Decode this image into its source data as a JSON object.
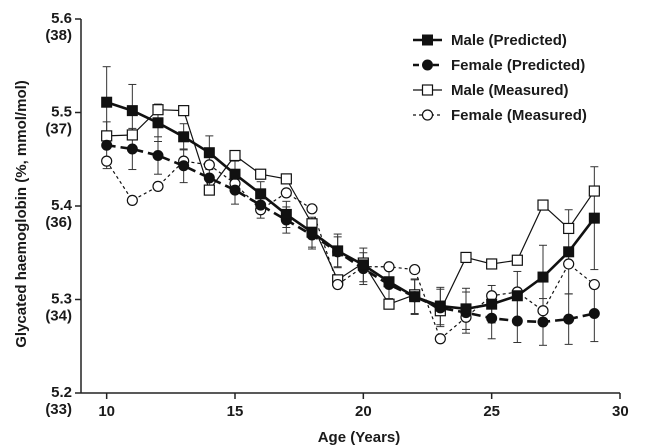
{
  "chart_data": {
    "type": "line",
    "xlabel": "Age (Years)",
    "ylabel": "Glycated haemoglobin (%, mmol/mol)",
    "xlim": [
      9,
      30
    ],
    "ylim": [
      5.2,
      5.6
    ],
    "x_ticks": [
      {
        "value": 10,
        "label": "10"
      },
      {
        "value": 15,
        "label": "15"
      },
      {
        "value": 20,
        "label": "20"
      },
      {
        "value": 25,
        "label": "25"
      },
      {
        "value": 30,
        "label": "30"
      }
    ],
    "y_ticks": [
      {
        "value": 5.2,
        "label": "5.2",
        "sublabel": "(33)"
      },
      {
        "value": 5.3,
        "label": "5.3",
        "sublabel": "(34)"
      },
      {
        "value": 5.4,
        "label": "5.4",
        "sublabel": "(36)"
      },
      {
        "value": 5.5,
        "label": "5.5",
        "sublabel": "(37)"
      },
      {
        "value": 5.6,
        "label": "5.6",
        "sublabel": "(38)"
      }
    ],
    "grid": false,
    "legend_position": "top-right",
    "x": [
      10,
      11,
      12,
      13,
      14,
      15,
      16,
      17,
      18,
      19,
      20,
      21,
      22,
      23,
      24,
      25,
      26,
      27,
      28,
      29
    ],
    "series": [
      {
        "name": "Male (Predicted)",
        "marker": "square-filled",
        "line": "solid-thick",
        "values": [
          5.511,
          5.502,
          5.489,
          5.474,
          5.457,
          5.434,
          5.413,
          5.391,
          5.372,
          5.352,
          5.337,
          5.319,
          5.303,
          5.293,
          5.29,
          5.295,
          5.304,
          5.324,
          5.351,
          5.387
        ],
        "errors": [
          0.038,
          0.028,
          0.02,
          0.014,
          0.018,
          0.014,
          0.013,
          0.014,
          0.016,
          0.018,
          0.018,
          0.018,
          0.018,
          0.02,
          0.022,
          0.02,
          0.026,
          0.034,
          0.045,
          0.055
        ]
      },
      {
        "name": "Female (Predicted)",
        "marker": "circle-filled",
        "line": "dashed-thick",
        "values": [
          5.465,
          5.461,
          5.454,
          5.443,
          5.43,
          5.417,
          5.401,
          5.385,
          5.369,
          5.351,
          5.333,
          5.316,
          5.303,
          5.291,
          5.286,
          5.28,
          5.277,
          5.276,
          5.279,
          5.285
        ],
        "errors": [
          0.025,
          0.022,
          0.02,
          0.018,
          0.016,
          0.015,
          0.014,
          0.014,
          0.015,
          0.016,
          0.017,
          0.018,
          0.019,
          0.02,
          0.022,
          0.022,
          0.023,
          0.025,
          0.027,
          0.03
        ]
      },
      {
        "name": "Male (Measured)",
        "marker": "square-open",
        "line": "solid-thin",
        "values": [
          5.475,
          5.476,
          5.503,
          5.502,
          5.417,
          5.454,
          5.434,
          5.429,
          5.381,
          5.321,
          5.339,
          5.295,
          5.305,
          5.288,
          5.345,
          5.338,
          5.342,
          5.401,
          5.376,
          5.416
        ],
        "errors": [
          0,
          0,
          0,
          0,
          0,
          0,
          0,
          0,
          0,
          0,
          0,
          0,
          0,
          0,
          0,
          0,
          0,
          0,
          0,
          0
        ]
      },
      {
        "name": "Female (Measured)",
        "marker": "circle-open",
        "line": "dotted-thin",
        "values": [
          5.448,
          5.406,
          5.421,
          5.448,
          5.444,
          5.424,
          5.396,
          5.414,
          5.397,
          5.316,
          5.335,
          5.335,
          5.332,
          5.258,
          5.281,
          5.304,
          5.308,
          5.288,
          5.338,
          5.316
        ],
        "errors": [
          0,
          0,
          0,
          0,
          0,
          0,
          0,
          0,
          0,
          0,
          0,
          0,
          0,
          0,
          0,
          0,
          0,
          0,
          0,
          0
        ]
      }
    ]
  }
}
